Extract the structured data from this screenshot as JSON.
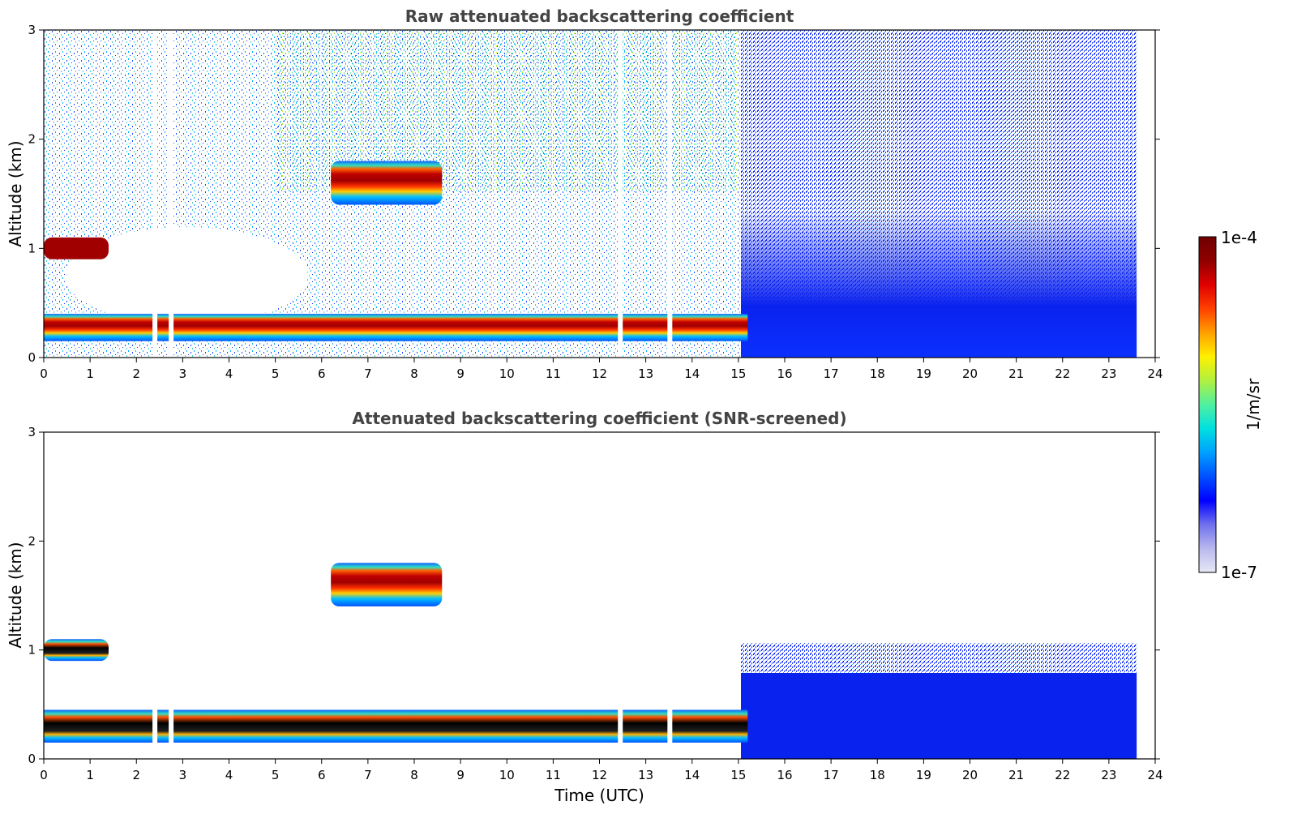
{
  "chart_data": [
    {
      "type": "heatmap",
      "title": "Raw attenuated backscattering coefficient",
      "xlabel": "",
      "ylabel": "Altitude (km)",
      "xlim": [
        0,
        24
      ],
      "ylim": [
        0,
        3
      ],
      "xticks": [
        "0",
        "1",
        "2",
        "3",
        "4",
        "5",
        "6",
        "7",
        "8",
        "9",
        "10",
        "11",
        "12",
        "13",
        "14",
        "15",
        "16",
        "17",
        "18",
        "19",
        "20",
        "21",
        "22",
        "23",
        "24"
      ],
      "yticks": [
        "0",
        "1",
        "2",
        "3"
      ],
      "data_end_time": 23.6,
      "features": [
        {
          "name": "boundary-layer aerosol",
          "time": [
            0,
            15.2
          ],
          "altitude": [
            0.15,
            0.4
          ],
          "level": "high"
        },
        {
          "name": "low cloud layer",
          "time": [
            0,
            1.4
          ],
          "altitude": [
            0.9,
            1.1
          ],
          "level": "very-high"
        },
        {
          "name": "elevated layer",
          "time": [
            6.2,
            8.6
          ],
          "altitude": [
            1.4,
            1.8
          ],
          "level": "high"
        },
        {
          "name": "night-time noise",
          "time": [
            15.2,
            23.6
          ],
          "altitude": [
            0,
            3.0
          ],
          "level": "low"
        }
      ],
      "gaps": [
        2.4,
        2.75,
        12.45,
        13.52
      ]
    },
    {
      "type": "heatmap",
      "title": "Attenuated backscattering coefficient (SNR-screened)",
      "xlabel": "Time (UTC)",
      "ylabel": "Altitude (km)",
      "xlim": [
        0,
        24
      ],
      "ylim": [
        0,
        3
      ],
      "xticks": [
        "0",
        "1",
        "2",
        "3",
        "4",
        "5",
        "6",
        "7",
        "8",
        "9",
        "10",
        "11",
        "12",
        "13",
        "14",
        "15",
        "16",
        "17",
        "18",
        "19",
        "20",
        "21",
        "22",
        "23",
        "24"
      ],
      "yticks": [
        "0",
        "1",
        "2",
        "3"
      ],
      "data_end_time": 23.6,
      "features": [
        {
          "name": "boundary-layer aerosol",
          "time": [
            0,
            15.2
          ],
          "altitude": [
            0.15,
            0.45
          ],
          "level": "saturated"
        },
        {
          "name": "low cloud layer",
          "time": [
            0,
            1.4
          ],
          "altitude": [
            0.9,
            1.1
          ],
          "level": "saturated"
        },
        {
          "name": "elevated layer",
          "time": [
            6.2,
            8.6
          ],
          "altitude": [
            1.4,
            1.8
          ],
          "level": "high"
        },
        {
          "name": "night-time aerosol",
          "time": [
            15.2,
            23.6
          ],
          "altitude": [
            0,
            1.05
          ],
          "level": "low"
        }
      ],
      "gaps": [
        2.4,
        2.75,
        12.45,
        13.52
      ]
    }
  ],
  "colorbar": {
    "label": "1/m/sr",
    "max_label": "1e-4",
    "min_label": "1e-7",
    "scale": "log",
    "colors": [
      "#e8e8f6",
      "#b8b8ee",
      "#7070ee",
      "#0000ff",
      "#0050ff",
      "#00a0ff",
      "#00e0e0",
      "#50f0a0",
      "#b0f040",
      "#fff000",
      "#ffa000",
      "#ff4000",
      "#e00000",
      "#900000",
      "#700000"
    ]
  }
}
